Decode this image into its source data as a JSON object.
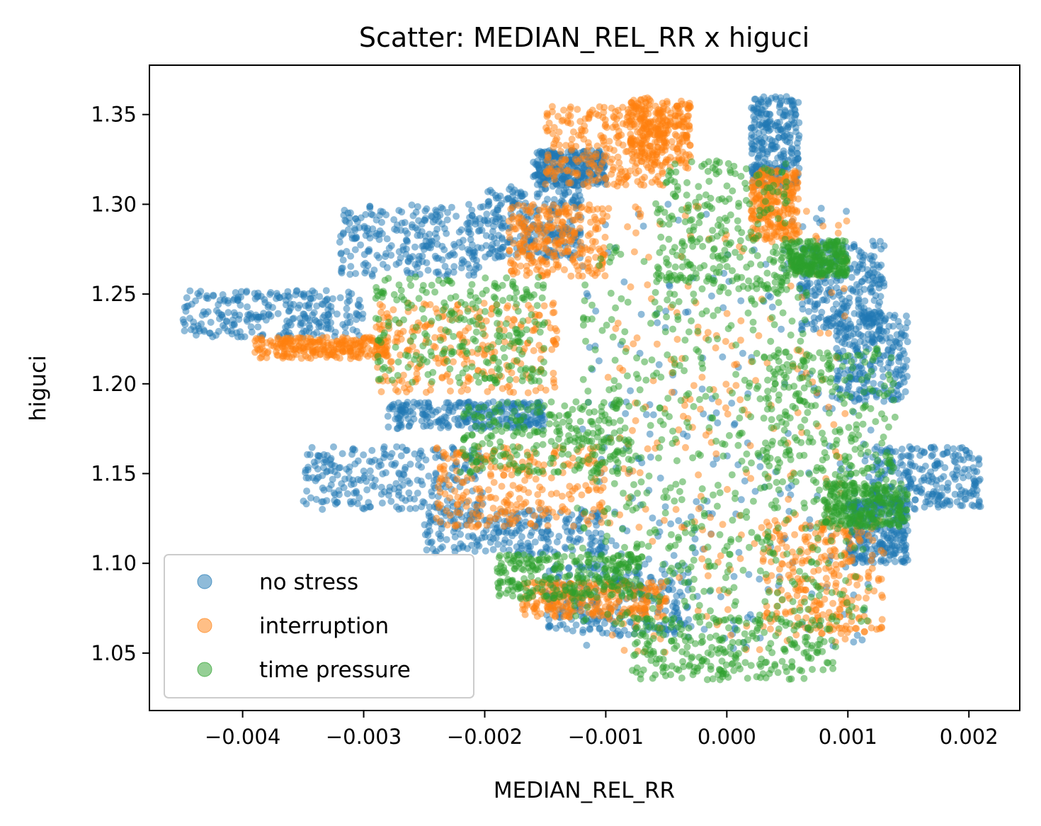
{
  "chart_data": {
    "type": "scatter",
    "title": "Scatter: MEDIAN_REL_RR x higuci",
    "xlabel": "MEDIAN_REL_RR",
    "ylabel": "higuci",
    "xlim": [
      -0.00477,
      0.00242
    ],
    "ylim": [
      1.018,
      1.3775
    ],
    "xticks": [
      -0.004,
      -0.003,
      -0.002,
      -0.001,
      0.0,
      0.001,
      0.002
    ],
    "xtick_labels": [
      "−0.004",
      "−0.003",
      "−0.002",
      "−0.001",
      "0.000",
      "0.001",
      "0.002"
    ],
    "yticks": [
      1.05,
      1.1,
      1.15,
      1.2,
      1.25,
      1.3,
      1.35
    ],
    "ytick_labels": [
      "1.05",
      "1.10",
      "1.15",
      "1.20",
      "1.25",
      "1.30",
      "1.35"
    ],
    "grid": false,
    "legend_position": "lower-left",
    "marker_alpha": 0.5,
    "series": [
      {
        "name": "no stress",
        "color": "#1f77b4",
        "clusters": [
          {
            "x": [
              -0.0045,
              -0.003
            ],
            "y": [
              1.226,
              1.252
            ]
          },
          {
            "x": [
              -0.0032,
              -0.002
            ],
            "y": [
              1.26,
              1.3
            ]
          },
          {
            "x": [
              -0.002,
              -0.0012
            ],
            "y": [
              1.27,
              1.31
            ]
          },
          {
            "x": [
              -0.0035,
              -0.002
            ],
            "y": [
              1.13,
              1.165
            ]
          },
          {
            "x": [
              -0.0028,
              -0.0015
            ],
            "y": [
              1.175,
              1.19
            ]
          },
          {
            "x": [
              -0.0025,
              -0.001
            ],
            "y": [
              1.105,
              1.13
            ]
          },
          {
            "x": [
              -0.0016,
              -0.001
            ],
            "y": [
              1.31,
              1.33
            ]
          },
          {
            "x": [
              0.0002,
              0.0006
            ],
            "y": [
              1.31,
              1.36
            ]
          },
          {
            "x": [
              0.0006,
              0.0013
            ],
            "y": [
              1.23,
              1.28
            ]
          },
          {
            "x": [
              0.0009,
              0.0015
            ],
            "y": [
              1.19,
              1.24
            ]
          },
          {
            "x": [
              0.0012,
              0.0021
            ],
            "y": [
              1.13,
              1.165
            ]
          },
          {
            "x": [
              0.001,
              0.0015
            ],
            "y": [
              1.1,
              1.135
            ]
          },
          {
            "x": [
              -0.0015,
              -0.0003
            ],
            "y": [
              1.06,
              1.1
            ]
          },
          {
            "x": [
              -0.0012,
              0.0012
            ],
            "y": [
              1.05,
              1.3
            ]
          }
        ]
      },
      {
        "name": "interruption",
        "color": "#ff7f0e",
        "clusters": [
          {
            "x": [
              -0.0039,
              -0.0028
            ],
            "y": [
              1.214,
              1.226
            ]
          },
          {
            "x": [
              -0.0029,
              -0.0014
            ],
            "y": [
              1.195,
              1.245
            ]
          },
          {
            "x": [
              -0.0024,
              -0.001
            ],
            "y": [
              1.12,
              1.165
            ]
          },
          {
            "x": [
              -0.0015,
              -0.0005
            ],
            "y": [
              1.31,
              1.355
            ]
          },
          {
            "x": [
              -0.0008,
              -0.0003
            ],
            "y": [
              1.32,
              1.36
            ]
          },
          {
            "x": [
              -0.0018,
              -0.001
            ],
            "y": [
              1.26,
              1.3
            ]
          },
          {
            "x": [
              -0.0017,
              -0.0005
            ],
            "y": [
              1.07,
              1.09
            ]
          },
          {
            "x": [
              0.0002,
              0.0006
            ],
            "y": [
              1.28,
              1.32
            ]
          },
          {
            "x": [
              0.0003,
              0.0013
            ],
            "y": [
              1.06,
              1.125
            ]
          },
          {
            "x": [
              -0.001,
              0.001
            ],
            "y": [
              1.05,
              1.3
            ]
          }
        ]
      },
      {
        "name": "time pressure",
        "color": "#2ca02c",
        "clusters": [
          {
            "x": [
              -0.0029,
              -0.0015
            ],
            "y": [
              1.2,
              1.26
            ]
          },
          {
            "x": [
              -0.0022,
              -0.0008
            ],
            "y": [
              1.15,
              1.19
            ]
          },
          {
            "x": [
              -0.0019,
              -0.0007
            ],
            "y": [
              1.08,
              1.105
            ]
          },
          {
            "x": [
              -0.0008,
              0.0009
            ],
            "y": [
              1.035,
              1.07
            ]
          },
          {
            "x": [
              -0.0013,
              0.0012
            ],
            "y": [
              1.065,
              1.14
            ]
          },
          {
            "x": [
              -0.0012,
              0.0007
            ],
            "y": [
              1.14,
              1.28
            ]
          },
          {
            "x": [
              -0.0006,
              0.0005
            ],
            "y": [
              1.25,
              1.325
            ]
          },
          {
            "x": [
              0.0003,
              0.0014
            ],
            "y": [
              1.14,
              1.22
            ]
          },
          {
            "x": [
              0.0008,
              0.0015
            ],
            "y": [
              1.12,
              1.145
            ]
          },
          {
            "x": [
              0.0005,
              0.001
            ],
            "y": [
              1.26,
              1.28
            ]
          }
        ]
      }
    ]
  }
}
